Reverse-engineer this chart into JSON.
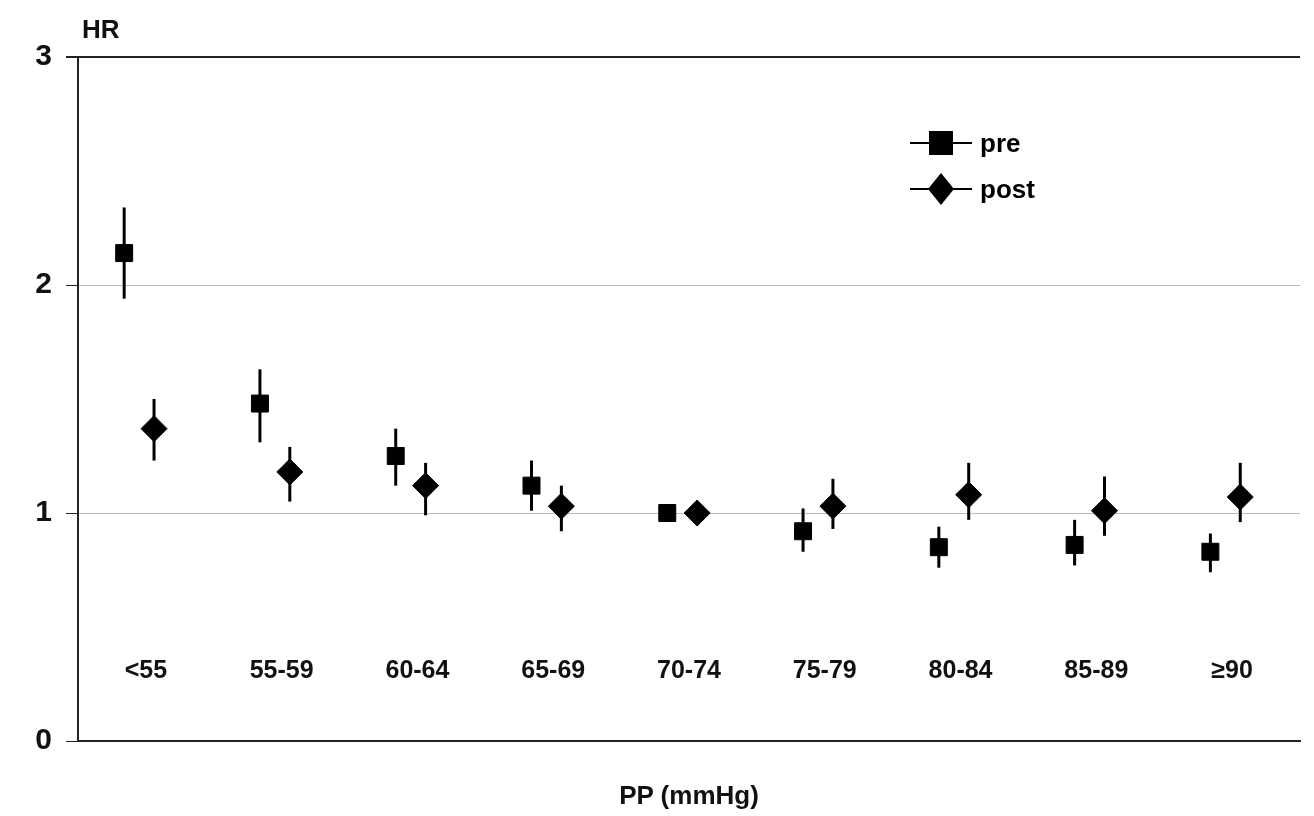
{
  "chart_data": {
    "type": "scatter",
    "xlabel": "PP (mmHg)",
    "ylabel": "HR",
    "categories": [
      "<55",
      "55-59",
      "60-64",
      "65-69",
      "70-74",
      "75-79",
      "80-84",
      "85-89",
      "≥90"
    ],
    "series": [
      {
        "name": "pre",
        "color": "#000000",
        "marker": "square",
        "values": [
          2.14,
          1.48,
          1.25,
          1.12,
          1.0,
          0.92,
          0.85,
          0.86,
          0.83
        ],
        "errors": [
          [
            1.94,
            2.34
          ],
          [
            1.31,
            1.63
          ],
          [
            1.12,
            1.37
          ],
          [
            1.01,
            1.23
          ],
          null,
          [
            0.83,
            1.02
          ],
          [
            0.76,
            0.94
          ],
          [
            0.77,
            0.97
          ],
          [
            0.74,
            0.91
          ]
        ]
      },
      {
        "name": "post",
        "color": "#000000",
        "marker": "diamond",
        "values": [
          1.37,
          1.18,
          1.12,
          1.03,
          1.0,
          1.03,
          1.08,
          1.01,
          1.07
        ],
        "errors": [
          [
            1.23,
            1.5
          ],
          [
            1.05,
            1.29
          ],
          [
            0.99,
            1.22
          ],
          [
            0.92,
            1.12
          ],
          null,
          [
            0.93,
            1.15
          ],
          [
            0.97,
            1.22
          ],
          [
            0.9,
            1.16
          ],
          [
            0.96,
            1.22
          ]
        ]
      }
    ],
    "ylim": [
      0,
      3
    ],
    "yticks": [
      0,
      1,
      2,
      3
    ],
    "grid": "y",
    "legend": "top right"
  }
}
